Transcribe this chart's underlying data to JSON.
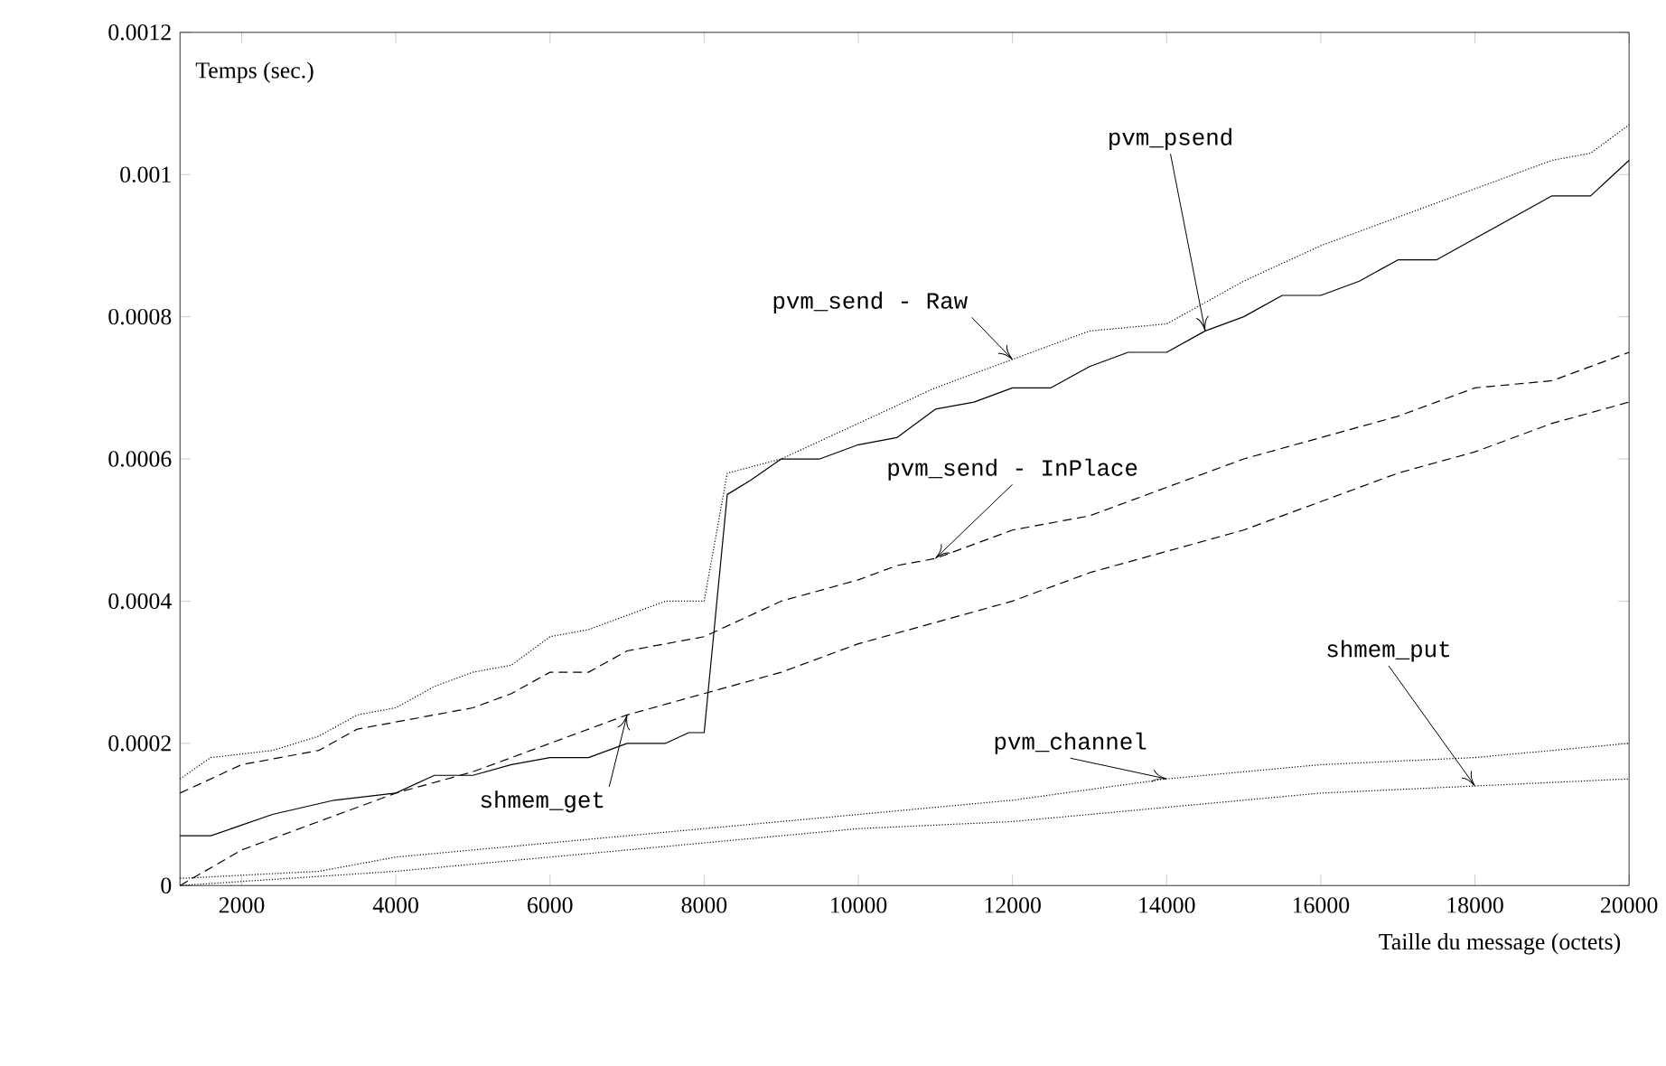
{
  "chart_data": {
    "type": "line",
    "xlabel": "Taille du message (octets)",
    "ylabel": "Temps (sec.)",
    "xlim": [
      1200,
      20000
    ],
    "ylim": [
      0,
      0.0012
    ],
    "xticks": [
      2000,
      4000,
      6000,
      8000,
      10000,
      12000,
      14000,
      16000,
      18000,
      20000
    ],
    "yticks": [
      0,
      0.0002,
      0.0004,
      0.0006,
      0.0008,
      0.001,
      0.0012
    ],
    "marker": "none",
    "series": [
      {
        "name": "pvm_psend",
        "color": "#000000",
        "line_style": "solid",
        "x": [
          1200,
          1600,
          2400,
          3200,
          4000,
          4500,
          5000,
          5500,
          6000,
          6500,
          7000,
          7500,
          7800,
          8000,
          8300,
          8600,
          9000,
          9500,
          10000,
          10500,
          11000,
          11500,
          12000,
          12500,
          13000,
          13500,
          14000,
          14500,
          15000,
          15500,
          16000,
          16500,
          17000,
          17500,
          18000,
          19000,
          19500,
          20000
        ],
        "values": [
          7e-05,
          7e-05,
          0.0001,
          0.00012,
          0.00013,
          0.000155,
          0.000155,
          0.00017,
          0.00018,
          0.00018,
          0.0002,
          0.0002,
          0.000215,
          0.000215,
          0.00055,
          0.00057,
          0.0006,
          0.0006,
          0.00062,
          0.00063,
          0.00067,
          0.00068,
          0.0007,
          0.0007,
          0.00073,
          0.00075,
          0.00075,
          0.00078,
          0.0008,
          0.00083,
          0.00083,
          0.00085,
          0.00088,
          0.00088,
          0.00091,
          0.00097,
          0.00097,
          0.00102
        ]
      },
      {
        "name": "pvm_send - Raw",
        "color": "#000000",
        "line_style": "dotted",
        "x": [
          1200,
          1600,
          2400,
          3000,
          3500,
          4000,
          4500,
          5000,
          5500,
          6000,
          6500,
          7000,
          7500,
          8000,
          8300,
          9000,
          10000,
          11000,
          12000,
          13000,
          14000,
          15000,
          16000,
          17000,
          18000,
          19000,
          19500,
          20000
        ],
        "values": [
          0.00015,
          0.00018,
          0.00019,
          0.00021,
          0.00024,
          0.00025,
          0.00028,
          0.0003,
          0.00031,
          0.00035,
          0.00036,
          0.00038,
          0.0004,
          0.0004,
          0.00058,
          0.0006,
          0.00065,
          0.0007,
          0.00074,
          0.00078,
          0.00079,
          0.00085,
          0.0009,
          0.00094,
          0.00098,
          0.00102,
          0.00103,
          0.00107
        ]
      },
      {
        "name": "pvm_send - InPlace",
        "color": "#000000",
        "line_style": "dashed",
        "x": [
          1200,
          2000,
          3000,
          3500,
          4000,
          5000,
          5500,
          6000,
          6500,
          7000,
          7500,
          8000,
          9000,
          10000,
          10500,
          11000,
          12000,
          13000,
          14000,
          15000,
          16000,
          17000,
          18000,
          19000,
          20000
        ],
        "values": [
          0.00013,
          0.00017,
          0.00019,
          0.00022,
          0.00023,
          0.00025,
          0.00027,
          0.0003,
          0.0003,
          0.00033,
          0.00034,
          0.00035,
          0.0004,
          0.00043,
          0.00045,
          0.00046,
          0.0005,
          0.00052,
          0.00056,
          0.0006,
          0.00063,
          0.00066,
          0.0007,
          0.00071,
          0.00075
        ]
      },
      {
        "name": "shmem_get",
        "color": "#000000",
        "line_style": "dashed",
        "x": [
          1200,
          2000,
          3000,
          4000,
          5000,
          6000,
          7000,
          8000,
          9000,
          10000,
          11000,
          12000,
          13000,
          14000,
          15000,
          16000,
          17000,
          18000,
          19000,
          20000
        ],
        "values": [
          0,
          5e-05,
          9e-05,
          0.00013,
          0.00016,
          0.0002,
          0.00024,
          0.00027,
          0.0003,
          0.00034,
          0.00037,
          0.0004,
          0.00044,
          0.00047,
          0.0005,
          0.00054,
          0.00058,
          0.00061,
          0.00065,
          0.00068
        ]
      },
      {
        "name": "pvm_channel",
        "color": "#000000",
        "line_style": "dotted",
        "x": [
          1200,
          3000,
          4000,
          6000,
          8000,
          10000,
          12000,
          14000,
          16000,
          18000,
          20000
        ],
        "values": [
          1e-05,
          2e-05,
          4e-05,
          6e-05,
          8e-05,
          0.0001,
          0.00012,
          0.00015,
          0.00017,
          0.00018,
          0.0002
        ]
      },
      {
        "name": "shmem_put",
        "color": "#000000",
        "line_style": "dotted",
        "x": [
          1200,
          4000,
          6000,
          8000,
          10000,
          12000,
          14000,
          16000,
          18000,
          20000
        ],
        "values": [
          0,
          2e-05,
          4e-05,
          6e-05,
          8e-05,
          9e-05,
          0.00011,
          0.00013,
          0.00014,
          0.00015
        ]
      }
    ]
  }
}
